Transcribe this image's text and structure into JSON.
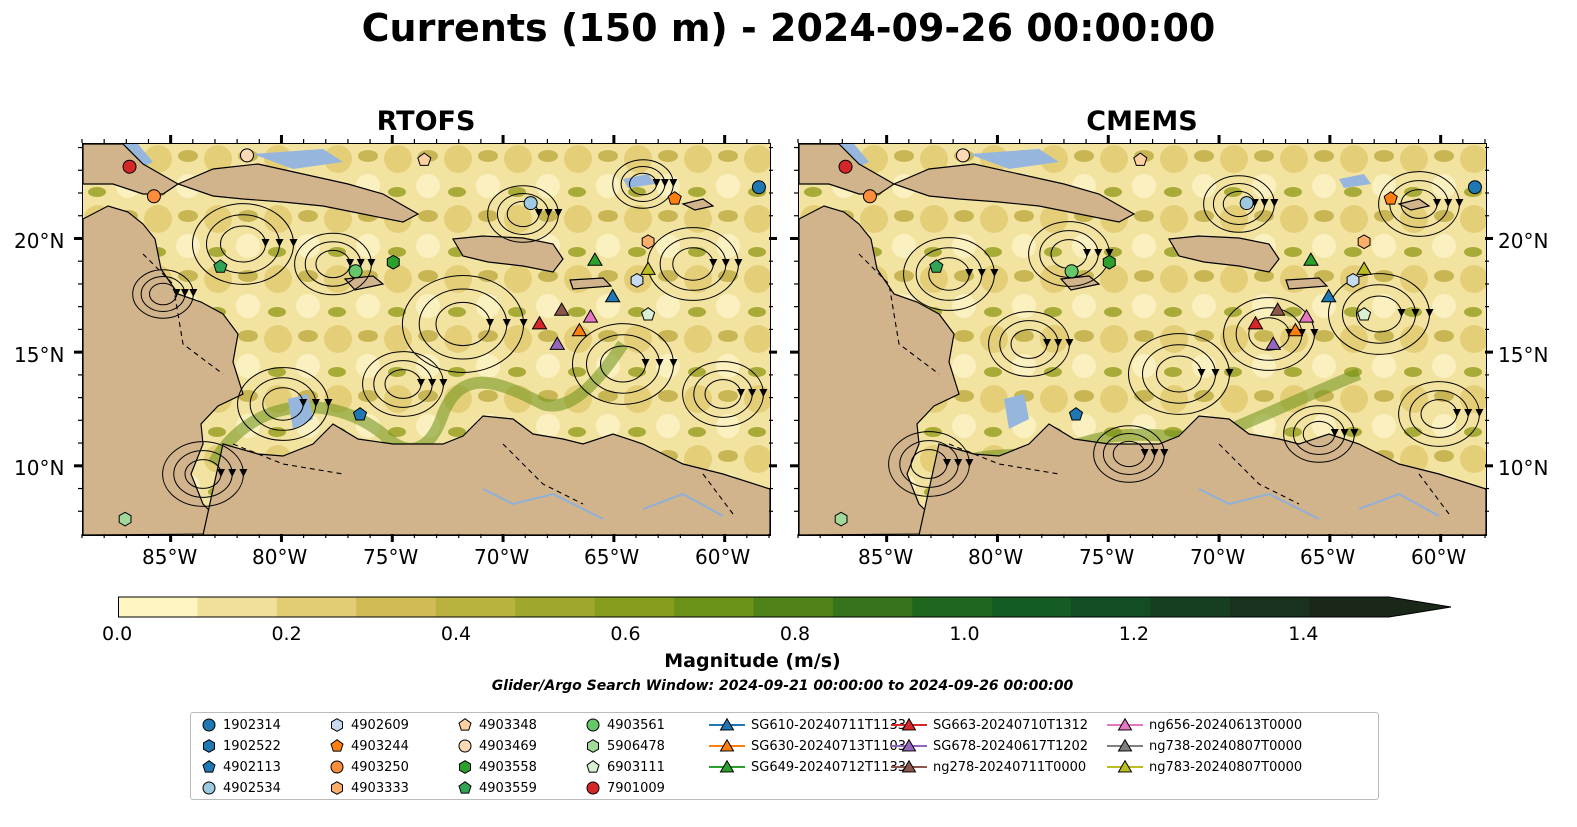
{
  "title": "Currents (150 m) - 2024-09-26 00:00:00",
  "panels": [
    {
      "title": "RTOFS"
    },
    {
      "title": "CMEMS"
    }
  ],
  "axes": {
    "lon_ticks": [
      "85°W",
      "80°W",
      "75°W",
      "70°W",
      "65°W",
      "60°W"
    ],
    "lat_ticks": [
      "20°N",
      "15°N",
      "10°N"
    ]
  },
  "colorbar": {
    "label": "Magnitude (m/s)",
    "ticks": [
      "0.0",
      "0.2",
      "0.4",
      "0.6",
      "0.8",
      "1.0",
      "1.2",
      "1.4"
    ],
    "colors": [
      "#fff6c2",
      "#f1e09b",
      "#e2cd75",
      "#d0bb55",
      "#bab23e",
      "#a0a82c",
      "#859e1e",
      "#6b9119",
      "#4f8319",
      "#35731c",
      "#1f661f",
      "#155b24",
      "#124d24",
      "#163f22",
      "#18321d",
      "#1a281a"
    ]
  },
  "search_window": "Glider/Argo Search Window: 2024-09-21 00:00:00 to 2024-09-26 00:00:00",
  "legend": [
    {
      "label": "1902314",
      "marker": "circle",
      "color": "#1f77b4"
    },
    {
      "label": "1902522",
      "marker": "hexagon",
      "color": "#1f77b4"
    },
    {
      "label": "4902113",
      "marker": "pentagon",
      "color": "#1f77b4"
    },
    {
      "label": "4902534",
      "marker": "circle",
      "color": "#9ecae1"
    },
    {
      "label": "4902609",
      "marker": "hexagon",
      "color": "#c6dbef"
    },
    {
      "label": "4903244",
      "marker": "pentagon",
      "color": "#ff7f0e"
    },
    {
      "label": "4903250",
      "marker": "circle",
      "color": "#fd8d3c"
    },
    {
      "label": "4903333",
      "marker": "hexagon",
      "color": "#fdae6b"
    },
    {
      "label": "4903348",
      "marker": "pentagon",
      "color": "#fdd0a2"
    },
    {
      "label": "4903469",
      "marker": "circle",
      "color": "#fdd9b5"
    },
    {
      "label": "4903558",
      "marker": "hexagon",
      "color": "#2ca02c"
    },
    {
      "label": "4903559",
      "marker": "pentagon",
      "color": "#31a354"
    },
    {
      "label": "4903561",
      "marker": "circle",
      "color": "#66c76a"
    },
    {
      "label": "5906478",
      "marker": "hexagon",
      "color": "#a1d99b"
    },
    {
      "label": "6903111",
      "marker": "pentagon",
      "color": "#d9f0d3"
    },
    {
      "label": "7901009",
      "marker": "circle",
      "color": "#d62728"
    },
    {
      "label": "SG610-20240711T1133",
      "marker": "triangle",
      "color": "#1f77b4"
    },
    {
      "label": "SG630-20240713T1103",
      "marker": "triangle",
      "color": "#ff7f0e"
    },
    {
      "label": "SG649-20240712T1133",
      "marker": "triangle",
      "color": "#2ca02c"
    },
    {
      "label": "SG663-20240710T1312",
      "marker": "triangle",
      "color": "#d62728"
    },
    {
      "label": "SG678-20240617T1202",
      "marker": "triangle",
      "color": "#9467bd"
    },
    {
      "label": "ng278-20240711T0000",
      "marker": "triangle",
      "color": "#8c564b"
    },
    {
      "label": "ng656-20240613T0000",
      "marker": "triangle",
      "color": "#e377c2"
    },
    {
      "label": "ng738-20240807T0000",
      "marker": "triangle",
      "color": "#7f7f7f"
    },
    {
      "label": "ng783-20240807T0000",
      "marker": "triangle",
      "color": "#bcbd22"
    }
  ],
  "map_extent": {
    "lon": [
      -89,
      -58
    ],
    "lat": [
      7,
      24.2
    ]
  },
  "platforms": [
    {
      "id": "7901009",
      "lon": -86.9,
      "lat": 23.2,
      "marker": "circle",
      "color": "#d62728"
    },
    {
      "id": "4903250",
      "lon": -85.8,
      "lat": 21.9,
      "marker": "circle",
      "color": "#fd8d3c"
    },
    {
      "id": "4903469",
      "lon": -81.6,
      "lat": 23.7,
      "marker": "circle",
      "color": "#fdd9b5"
    },
    {
      "id": "4903348",
      "lon": -73.6,
      "lat": 23.5,
      "marker": "pentagon",
      "color": "#fdd0a2"
    },
    {
      "id": "4902534",
      "lon": -68.8,
      "lat": 21.6,
      "marker": "circle",
      "color": "#9ecae1"
    },
    {
      "id": "1902314",
      "lon": -58.5,
      "lat": 22.3,
      "marker": "circle",
      "color": "#1f77b4"
    },
    {
      "id": "4903244",
      "lon": -62.3,
      "lat": 21.8,
      "marker": "pentagon",
      "color": "#ff7f0e"
    },
    {
      "id": "4903559",
      "lon": -82.8,
      "lat": 18.8,
      "marker": "pentagon",
      "color": "#31a354"
    },
    {
      "id": "4903561",
      "lon": -76.7,
      "lat": 18.6,
      "marker": "circle",
      "color": "#66c76a"
    },
    {
      "id": "4903558",
      "lon": -75.0,
      "lat": 19.0,
      "marker": "hexagon",
      "color": "#2ca02c"
    },
    {
      "id": "4903333",
      "lon": -63.5,
      "lat": 19.9,
      "marker": "hexagon",
      "color": "#fdae6b"
    },
    {
      "id": "4902609",
      "lon": -64.0,
      "lat": 18.2,
      "marker": "hexagon",
      "color": "#c6dbef"
    },
    {
      "id": "6903111",
      "lon": -63.5,
      "lat": 16.7,
      "marker": "pentagon",
      "color": "#d9f0d3"
    },
    {
      "id": "4902113",
      "lon": -76.5,
      "lat": 12.3,
      "marker": "pentagon",
      "color": "#1f77b4"
    },
    {
      "id": "5906478",
      "lon": -87.1,
      "lat": 7.7,
      "marker": "hexagon",
      "color": "#a1d99b"
    },
    {
      "id": "SG649-20240712T1133",
      "lon": -65.9,
      "lat": 19.1,
      "marker": "triangle",
      "color": "#2ca02c"
    },
    {
      "id": "ng783-20240807T0000",
      "lon": -63.5,
      "lat": 18.7,
      "marker": "triangle",
      "color": "#bcbd22"
    },
    {
      "id": "SG610-20240711T1133",
      "lon": -65.1,
      "lat": 17.5,
      "marker": "triangle",
      "color": "#1f77b4"
    },
    {
      "id": "ng278-20240711T0000",
      "lon": -67.4,
      "lat": 16.9,
      "marker": "triangle",
      "color": "#8c564b"
    },
    {
      "id": "ng656-20240613T0000",
      "lon": -66.1,
      "lat": 16.6,
      "marker": "triangle",
      "color": "#e377c2"
    },
    {
      "id": "SG663-20240710T1312",
      "lon": -68.4,
      "lat": 16.3,
      "marker": "triangle",
      "color": "#d62728"
    },
    {
      "id": "SG630-20240713T1103",
      "lon": -66.6,
      "lat": 16.0,
      "marker": "triangle",
      "color": "#ff7f0e"
    },
    {
      "id": "SG678-20240617T1202",
      "lon": -67.6,
      "lat": 15.4,
      "marker": "triangle",
      "color": "#9467bd"
    }
  ]
}
